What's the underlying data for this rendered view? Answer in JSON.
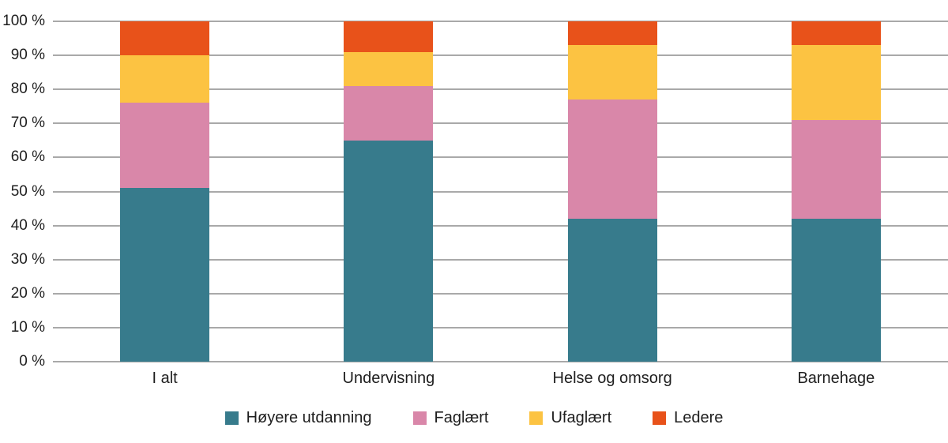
{
  "chart_data": {
    "type": "bar",
    "stacked": true,
    "percent_scale": true,
    "title": "",
    "xlabel": "",
    "ylabel": "",
    "categories": [
      "I alt",
      "Undervisning",
      "Helse og omsorg",
      "Barnehage"
    ],
    "series": [
      {
        "name": "Høyere utdanning",
        "color": "#377b8c",
        "values": [
          51,
          65,
          42,
          42
        ]
      },
      {
        "name": "Faglært",
        "color": "#d987a9",
        "values": [
          25,
          16,
          35,
          29
        ]
      },
      {
        "name": "Ufaglært",
        "color": "#fcc342",
        "values": [
          14,
          10,
          16,
          22
        ]
      },
      {
        "name": "Ledere",
        "color": "#e8521a",
        "values": [
          10,
          9,
          7,
          7
        ]
      }
    ],
    "y_ticks": [
      "0 %",
      "10 %",
      "20 %",
      "30 %",
      "40 %",
      "50 %",
      "60 %",
      "70 %",
      "80 %",
      "90 %",
      "100 %"
    ],
    "ylim": [
      0,
      100
    ],
    "grid": true,
    "gridline_color": "#a9a9a9",
    "text_color": "#1e1e1e",
    "background_color": "#ffffff",
    "legend_position": "bottom"
  }
}
